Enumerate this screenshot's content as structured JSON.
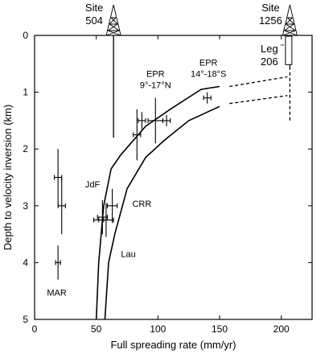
{
  "chart_data": {
    "type": "scatter",
    "title": "",
    "xlabel": "Full spreading rate (mm/yr)",
    "ylabel": "Depth to velocity inversion (km)",
    "xlim": [
      0,
      225
    ],
    "ylim": [
      5,
      0
    ],
    "x_ticks": [
      0,
      50,
      100,
      150,
      200
    ],
    "y_ticks": [
      0,
      1,
      2,
      3,
      4,
      5
    ],
    "y_inverted": true,
    "grid": false,
    "legend": "none",
    "series": [
      {
        "name": "",
        "kind": "error_points",
        "points": [
          {
            "x": 19,
            "y": 4.0,
            "xerr": 2,
            "yerr": 0.3
          },
          {
            "x": 19,
            "y": 2.5,
            "xerr": 3,
            "yerr": 0.5
          },
          {
            "x": 22,
            "y": 3.0,
            "xerr": 3,
            "yerr": 0.5
          },
          {
            "x": 52,
            "y": 3.25,
            "xerr": 4,
            "yerr": 0.0
          },
          {
            "x": 55,
            "y": 3.2,
            "xerr": 4,
            "yerr": 0.3
          },
          {
            "x": 58,
            "y": 3.25,
            "xerr": 6,
            "yerr": 0.3
          },
          {
            "x": 63,
            "y": 3.0,
            "xerr": 4,
            "yerr": 0.3
          },
          {
            "x": 83,
            "y": 1.75,
            "xerr": 3,
            "yerr": 0.45
          },
          {
            "x": 87,
            "y": 1.5,
            "xerr": 3,
            "yerr": 0.15
          },
          {
            "x": 98,
            "y": 1.5,
            "xerr": 6,
            "yerr": 0.4
          },
          {
            "x": 107,
            "y": 1.5,
            "xerr": 3,
            "yerr": 0.1
          },
          {
            "x": 140,
            "y": 1.1,
            "xerr": 3,
            "yerr": 0.1
          }
        ]
      },
      {
        "name": "",
        "kind": "curve",
        "points": [
          [
            50,
            5.0
          ],
          [
            52,
            4.0
          ],
          [
            56,
            3.0
          ],
          [
            62,
            2.35
          ],
          [
            70,
            2.1
          ],
          [
            90,
            1.6
          ],
          [
            110,
            1.3
          ],
          [
            135,
            0.95
          ],
          [
            150,
            0.9
          ]
        ]
      },
      {
        "name": "",
        "kind": "curve",
        "points": [
          [
            57,
            5.0
          ],
          [
            60,
            4.0
          ],
          [
            65,
            3.5
          ],
          [
            75,
            2.7
          ],
          [
            90,
            2.15
          ],
          [
            105,
            1.85
          ],
          [
            125,
            1.5
          ],
          [
            150,
            1.25
          ]
        ]
      },
      {
        "name": "",
        "kind": "dashed",
        "points": [
          [
            158,
            0.9
          ],
          [
            205,
            0.73
          ]
        ]
      },
      {
        "name": "",
        "kind": "dashed",
        "points": [
          [
            158,
            1.2
          ],
          [
            205,
            1.06
          ]
        ]
      },
      {
        "name": "",
        "kind": "dashed",
        "points": [
          [
            207,
            0.55
          ],
          [
            207,
            1.5
          ]
        ]
      }
    ],
    "sites": [
      {
        "label_line1": "Site",
        "label_line2": "504",
        "x": 64,
        "line_depth": 1.8
      },
      {
        "label_line1": "Site",
        "label_line2": "1256",
        "x": 207,
        "line_depth": 0.55
      }
    ],
    "leg_box": {
      "label_line1": "Leg",
      "label_line2": "206",
      "x": 206,
      "y_top": 0.0,
      "y_bottom": 0.5
    },
    "annotations": [
      {
        "text": "EPR",
        "x": 98,
        "y": 0.73
      },
      {
        "text": "9°-17°N",
        "x": 98,
        "y": 0.93
      },
      {
        "text": "EPR",
        "x": 141,
        "y": 0.53
      },
      {
        "text": "14°-18°S",
        "x": 141,
        "y": 0.73
      },
      {
        "text": "JdF",
        "x": 47,
        "y": 2.68
      },
      {
        "text": "CRR",
        "x": 87,
        "y": 3.02
      },
      {
        "text": "Lau",
        "x": 76,
        "y": 3.9
      },
      {
        "text": "MAR",
        "x": 18,
        "y": 4.58
      }
    ]
  }
}
